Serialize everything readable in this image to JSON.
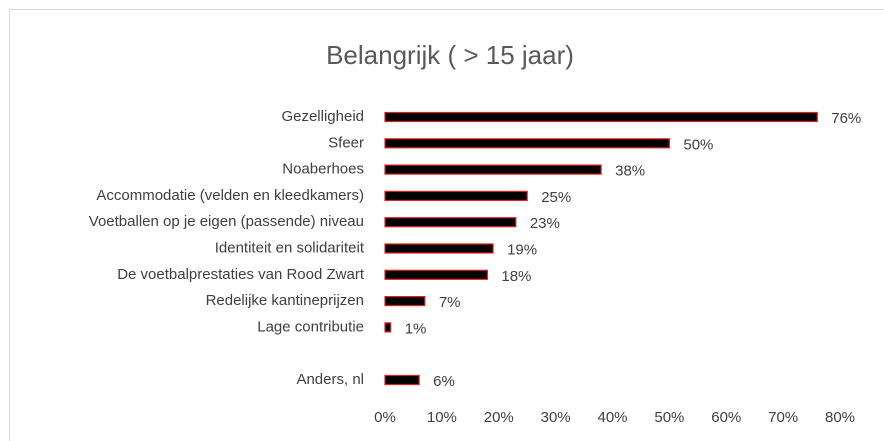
{
  "chart_data": {
    "type": "bar",
    "orientation": "horizontal",
    "title": "Belangrijk ( > 15 jaar)",
    "categories": [
      "Gezelligheid",
      "Sfeer",
      "Noaberhoes",
      "Accommodatie (velden en kleedkamers)",
      "Voetballen op je eigen (passende) niveau",
      "Identiteit en solidariteit",
      "De voetbalprestaties van Rood Zwart",
      "Redelijke kantineprijzen",
      "Lage contributie",
      null,
      "Anders, nl"
    ],
    "values": [
      76,
      50,
      38,
      25,
      23,
      19,
      18,
      7,
      1,
      null,
      6
    ],
    "value_labels": [
      "76%",
      "50%",
      "38%",
      "25%",
      "23%",
      "19%",
      "18%",
      "7%",
      "1%",
      null,
      "6%"
    ],
    "color": "#000000",
    "edgecolor": "#e0201b",
    "xlim": [
      0,
      80
    ],
    "xticks": [
      {
        "value": 0,
        "label": "0%"
      },
      {
        "value": 10,
        "label": "10%"
      },
      {
        "value": 20,
        "label": "20%"
      },
      {
        "value": 30,
        "label": "30%"
      },
      {
        "value": 40,
        "label": "40%"
      },
      {
        "value": 50,
        "label": "50%"
      },
      {
        "value": 60,
        "label": "60%"
      },
      {
        "value": 70,
        "label": "70%"
      },
      {
        "value": 80,
        "label": "80%"
      }
    ],
    "grid": false
  }
}
